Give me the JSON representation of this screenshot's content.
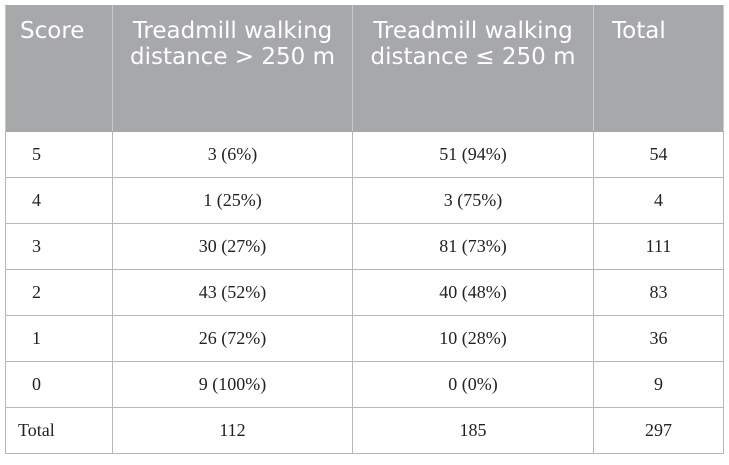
{
  "table": {
    "headers": [
      "Score",
      "Treadmill walking distance > 250 m",
      "Treadmill walking distance ≤ 250 m",
      "Total"
    ],
    "rows": [
      {
        "score": "5",
        "gt250": "3 (6%)",
        "le250": "51 (94%)",
        "total": "54"
      },
      {
        "score": "4",
        "gt250": "1 (25%)",
        "le250": "3 (75%)",
        "total": "4"
      },
      {
        "score": "3",
        "gt250": "30 (27%)",
        "le250": "81 (73%)",
        "total": "111"
      },
      {
        "score": "2",
        "gt250": "43 (52%)",
        "le250": "40 (48%)",
        "total": "83"
      },
      {
        "score": "1",
        "gt250": "26 (72%)",
        "le250": "10 (28%)",
        "total": "36"
      },
      {
        "score": "0",
        "gt250": "9 (100%)",
        "le250": "0 (0%)",
        "total": "9"
      }
    ],
    "total_row": {
      "label": "Total",
      "gt250": "112",
      "le250": "185",
      "total": "297"
    }
  }
}
